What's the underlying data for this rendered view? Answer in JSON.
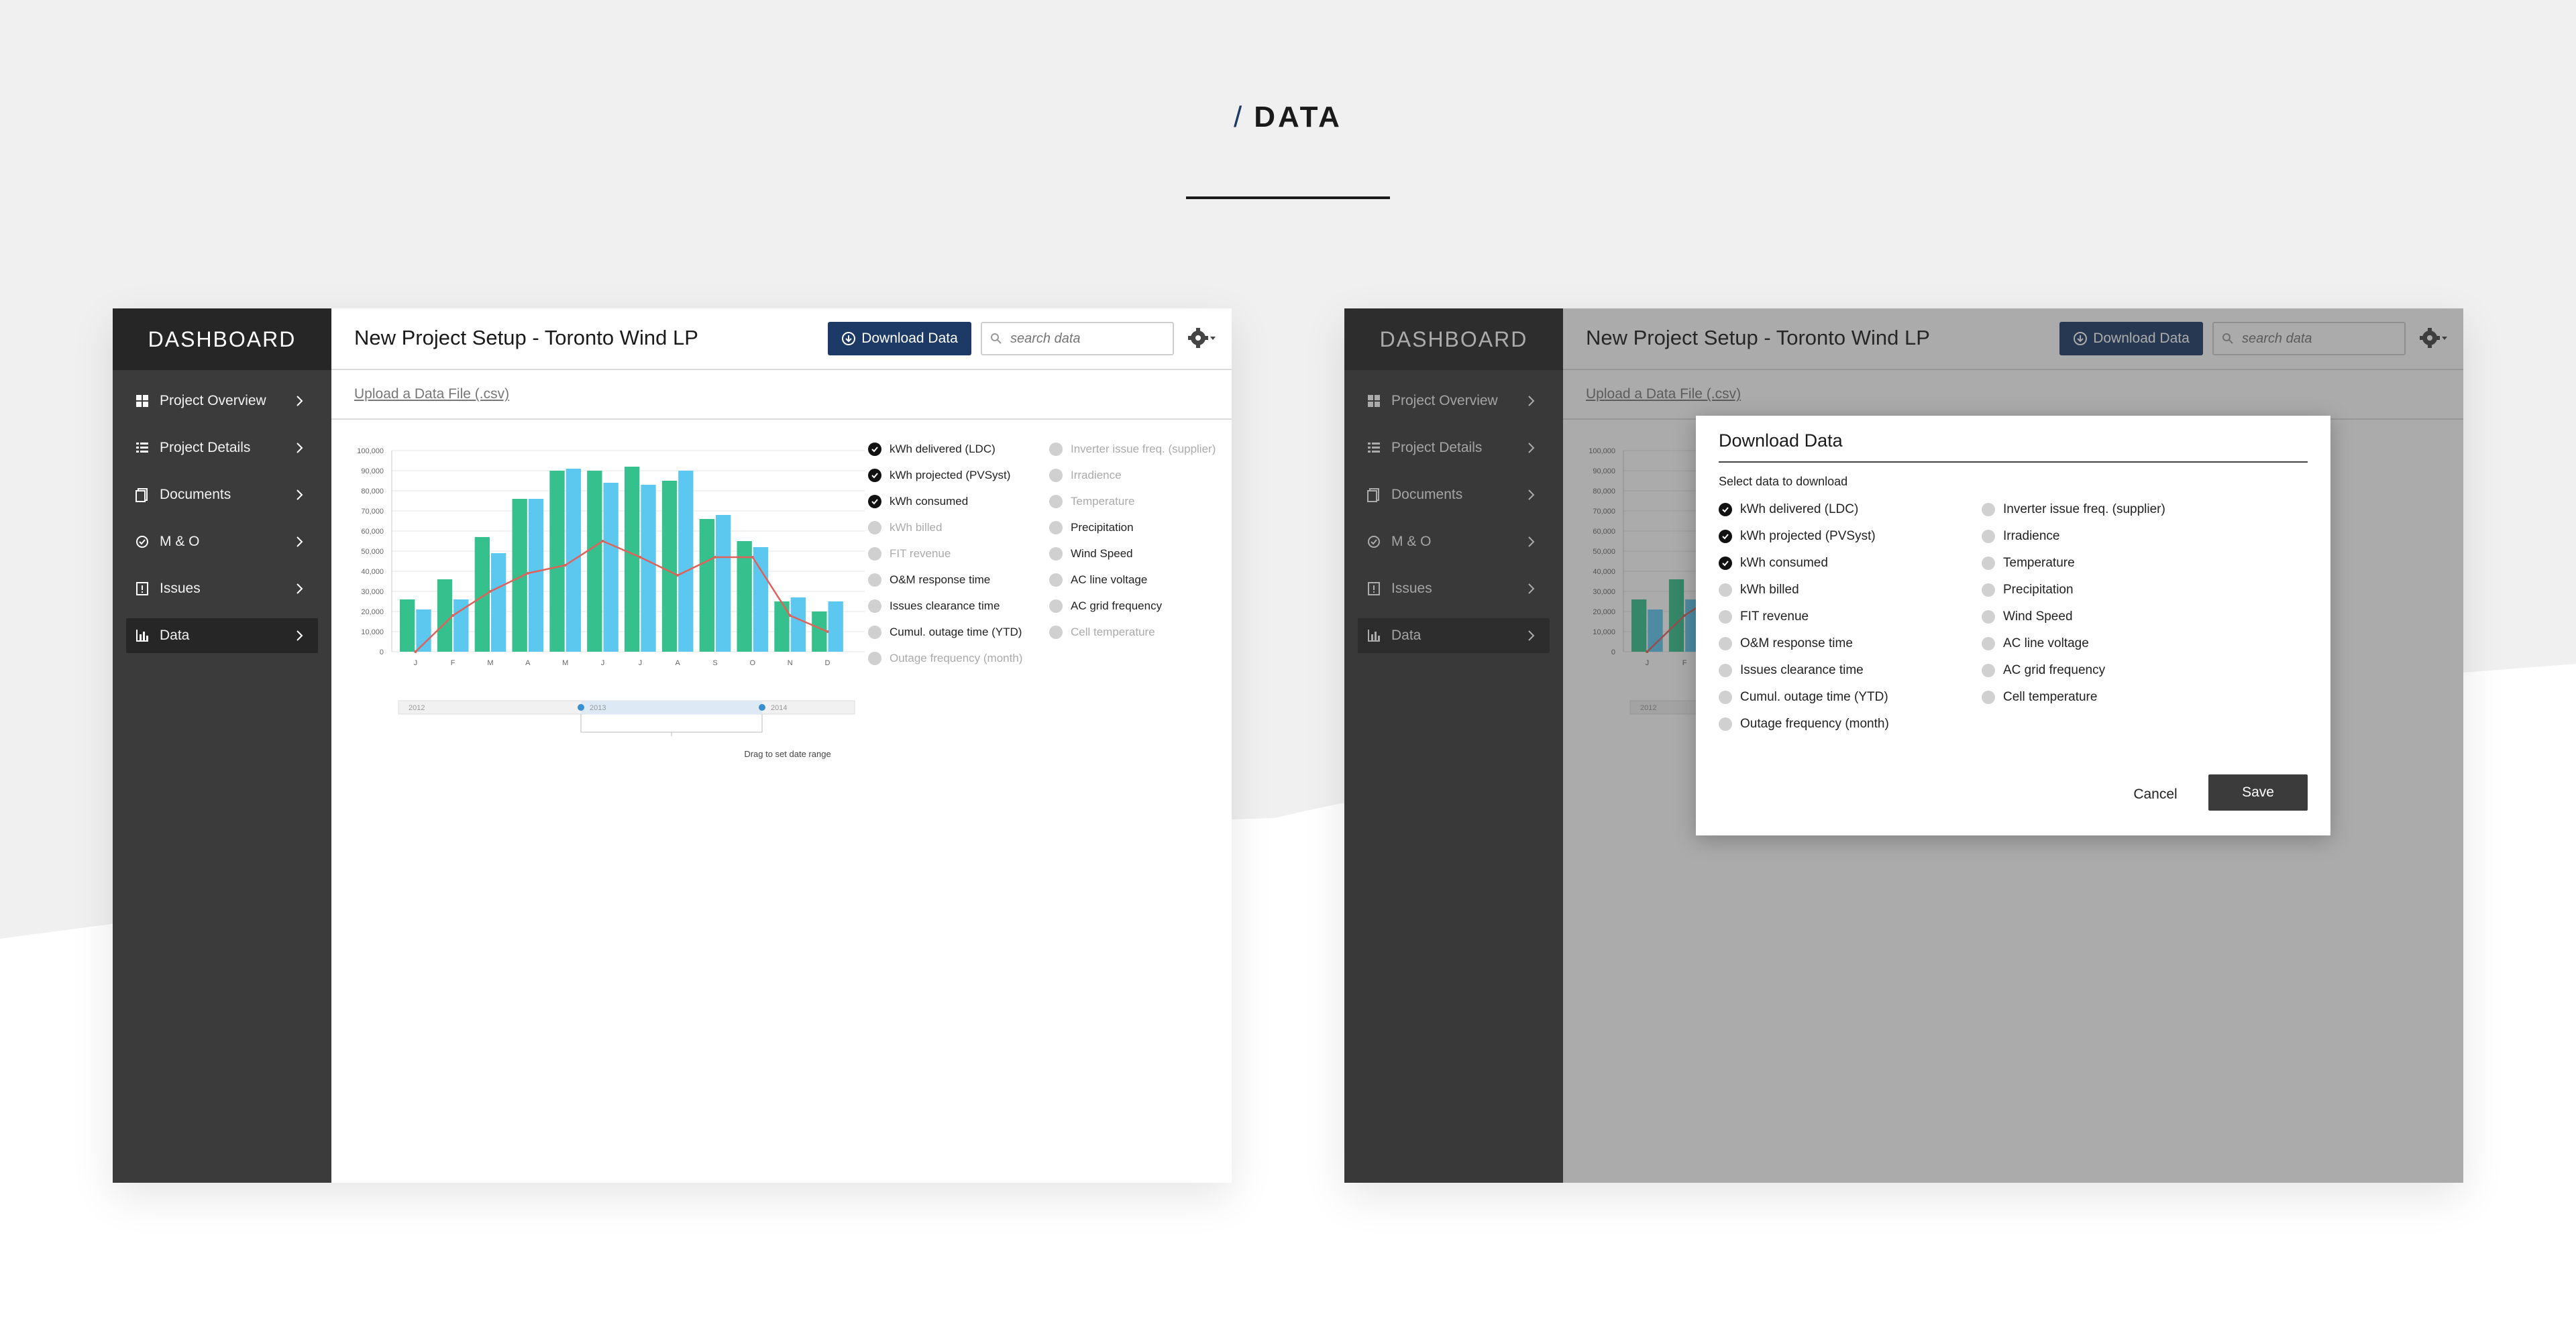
{
  "colors": {
    "accent": "#1d3a66",
    "green": "#36c08e",
    "blue": "#5cc8f0",
    "line": "#e0605a",
    "sidebar": "#3b3b3b",
    "sidebar_dark": "#262626"
  },
  "header": {
    "slash": "/",
    "title": "DATA"
  },
  "app": {
    "brand": "DASHBOARD",
    "nav": [
      {
        "label": "Project Overview",
        "icon": "grid-icon"
      },
      {
        "label": "Project Details",
        "icon": "list-icon"
      },
      {
        "label": "Documents",
        "icon": "documents-icon"
      },
      {
        "label": "M & O",
        "icon": "check-circle-icon"
      },
      {
        "label": "Issues",
        "icon": "issue-icon"
      },
      {
        "label": "Data",
        "icon": "bar-chart-icon",
        "active": true
      }
    ],
    "page_title": "New Project Setup - Toronto Wind LP",
    "download_label": "Download Data",
    "search_placeholder": "search data",
    "upload_label": "Upload a Data File (.csv)"
  },
  "legend_col1": [
    {
      "label": "kWh delivered (LDC)",
      "checked": true,
      "muted": false
    },
    {
      "label": "kWh projected (PVSyst)",
      "checked": true,
      "muted": false
    },
    {
      "label": "kWh consumed",
      "checked": true,
      "muted": false
    },
    {
      "label": "kWh billed",
      "checked": false,
      "muted": true
    },
    {
      "label": "FIT revenue",
      "checked": false,
      "muted": true
    },
    {
      "label": "O&M response time",
      "checked": false,
      "muted": false
    },
    {
      "label": "Issues clearance time",
      "checked": false,
      "muted": false
    },
    {
      "label": "Cumul. outage time (YTD)",
      "checked": false,
      "muted": false
    },
    {
      "label": "Outage frequency (month)",
      "checked": false,
      "muted": true
    }
  ],
  "legend_col2": [
    {
      "label": "Inverter issue freq. (supplier)",
      "checked": false,
      "muted": true
    },
    {
      "label": "Irradience",
      "checked": false,
      "muted": true
    },
    {
      "label": "Temperature",
      "checked": false,
      "muted": true
    },
    {
      "label": "Precipitation",
      "checked": false,
      "muted": false
    },
    {
      "label": "Wind Speed",
      "checked": false,
      "muted": false
    },
    {
      "label": "AC line voltage",
      "checked": false,
      "muted": false
    },
    {
      "label": "AC grid frequency",
      "checked": false,
      "muted": false
    },
    {
      "label": "Cell temperature",
      "checked": false,
      "muted": true
    }
  ],
  "chart_data": {
    "type": "bar",
    "categories": [
      "J",
      "F",
      "M",
      "A",
      "M",
      "J",
      "J",
      "A",
      "S",
      "O",
      "N",
      "D"
    ],
    "series": [
      {
        "values": [
          26000,
          36000,
          57000,
          76000,
          90000,
          90000,
          92000,
          85000,
          66000,
          55000,
          25000,
          20000
        ]
      },
      {
        "values": [
          21000,
          26000,
          49000,
          76000,
          91000,
          84000,
          83000,
          90000,
          68000,
          52000,
          27000,
          25000
        ]
      }
    ],
    "line": [
      0,
      18000,
      30000,
      39000,
      43000,
      55000,
      47000,
      38000,
      47000,
      47000,
      18000,
      10000
    ],
    "ylim": [
      0,
      100000
    ],
    "yticks": [
      "0",
      "10,000",
      "20,000",
      "30,000",
      "40,000",
      "50,000",
      "60,000",
      "70,000",
      "80,000",
      "90,000",
      "100,000"
    ],
    "range_labels": [
      "2012",
      "2013",
      "2014"
    ],
    "range_hint": "Drag to set date range"
  },
  "modal": {
    "title": "Download Data",
    "subtitle": "Select data to download",
    "col1": [
      {
        "label": "kWh delivered (LDC)",
        "checked": true
      },
      {
        "label": "kWh projected (PVSyst)",
        "checked": true
      },
      {
        "label": "kWh consumed",
        "checked": true
      },
      {
        "label": "kWh billed",
        "checked": false
      },
      {
        "label": "FIT revenue",
        "checked": false
      },
      {
        "label": "O&M response time",
        "checked": false
      },
      {
        "label": "Issues clearance time",
        "checked": false
      },
      {
        "label": "Cumul. outage time (YTD)",
        "checked": false
      },
      {
        "label": "Outage frequency (month)",
        "checked": false
      }
    ],
    "col2": [
      {
        "label": "Inverter issue freq. (supplier)",
        "checked": false
      },
      {
        "label": "Irradience",
        "checked": false
      },
      {
        "label": "Temperature",
        "checked": false
      },
      {
        "label": "Precipitation",
        "checked": false
      },
      {
        "label": "Wind Speed",
        "checked": false
      },
      {
        "label": "AC line voltage",
        "checked": false
      },
      {
        "label": "AC grid frequency",
        "checked": false
      },
      {
        "label": "Cell temperature",
        "checked": false
      }
    ],
    "cancel_label": "Cancel",
    "save_label": "Save"
  }
}
